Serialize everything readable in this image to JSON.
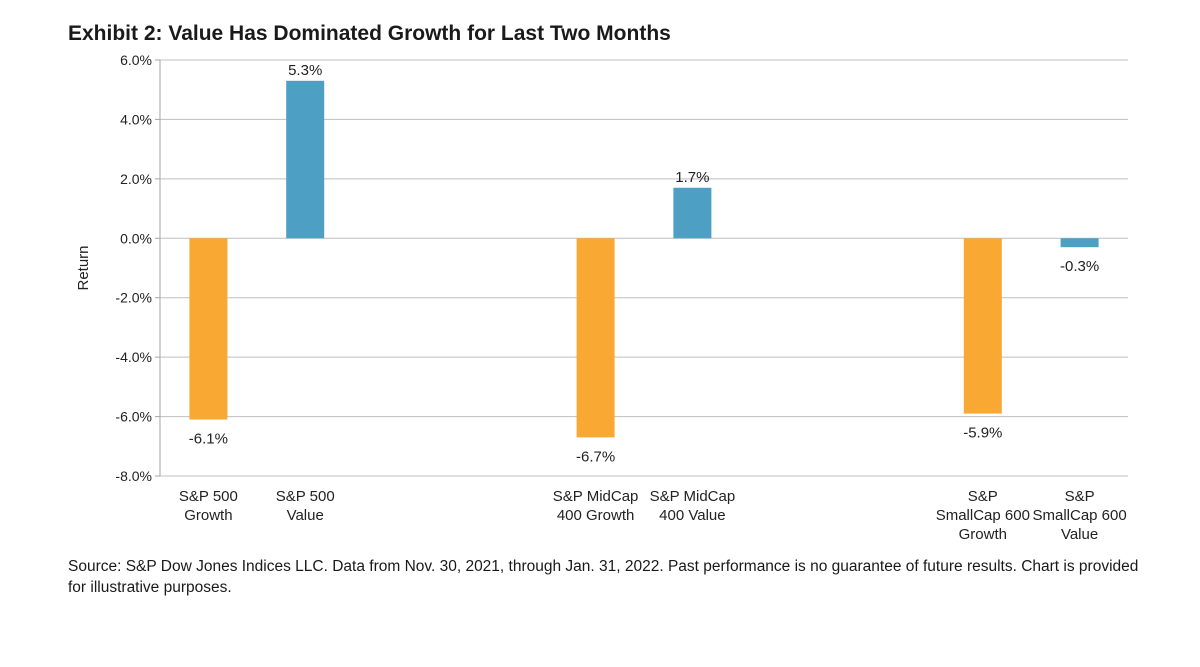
{
  "chart_data": {
    "type": "bar",
    "title": "Exhibit 2: Value Has Dominated Growth for Last Two Months",
    "ylabel": "Return",
    "xlabel": "",
    "ylim": [
      -8.0,
      6.0
    ],
    "ytick_step": 2.0,
    "ytick_labels": [
      "6.0%",
      "4.0%",
      "2.0%",
      "0.0%",
      "-2.0%",
      "-4.0%",
      "-6.0%",
      "-8.0%"
    ],
    "grid": true,
    "categories": [
      "S&P 500 Growth",
      "S&P 500 Value",
      "S&P MidCap 400 Growth",
      "S&P MidCap 400 Value",
      "S&P SmallCap 600 Growth",
      "S&P SmallCap 600 Value"
    ],
    "category_label_lines": [
      [
        "S&P 500",
        "Growth"
      ],
      [
        "S&P 500",
        "Value"
      ],
      [
        "S&P MidCap",
        "400 Growth"
      ],
      [
        "S&P MidCap",
        "400 Value"
      ],
      [
        "S&P",
        "SmallCap 600",
        "Growth"
      ],
      [
        "S&P",
        "SmallCap 600",
        "Value"
      ]
    ],
    "values": [
      -6.1,
      5.3,
      -6.7,
      1.7,
      -5.9,
      -0.3
    ],
    "data_labels": [
      "-6.1%",
      "5.3%",
      "-6.7%",
      "1.7%",
      "-5.9%",
      "-0.3%"
    ],
    "bar_types": [
      "growth",
      "value",
      "growth",
      "value",
      "growth",
      "value"
    ],
    "colors": {
      "growth": "#F9A833",
      "value": "#4D9FC4",
      "grid": "#BFBFBF",
      "axis": "#A6A6A6"
    }
  },
  "footer": {
    "source": "Source: S&P Dow Jones Indices LLC. Data from Nov. 30, 2021, through Jan. 31, 2022. Past performance is no guarantee of future results. Chart is provided for illustrative purposes."
  }
}
